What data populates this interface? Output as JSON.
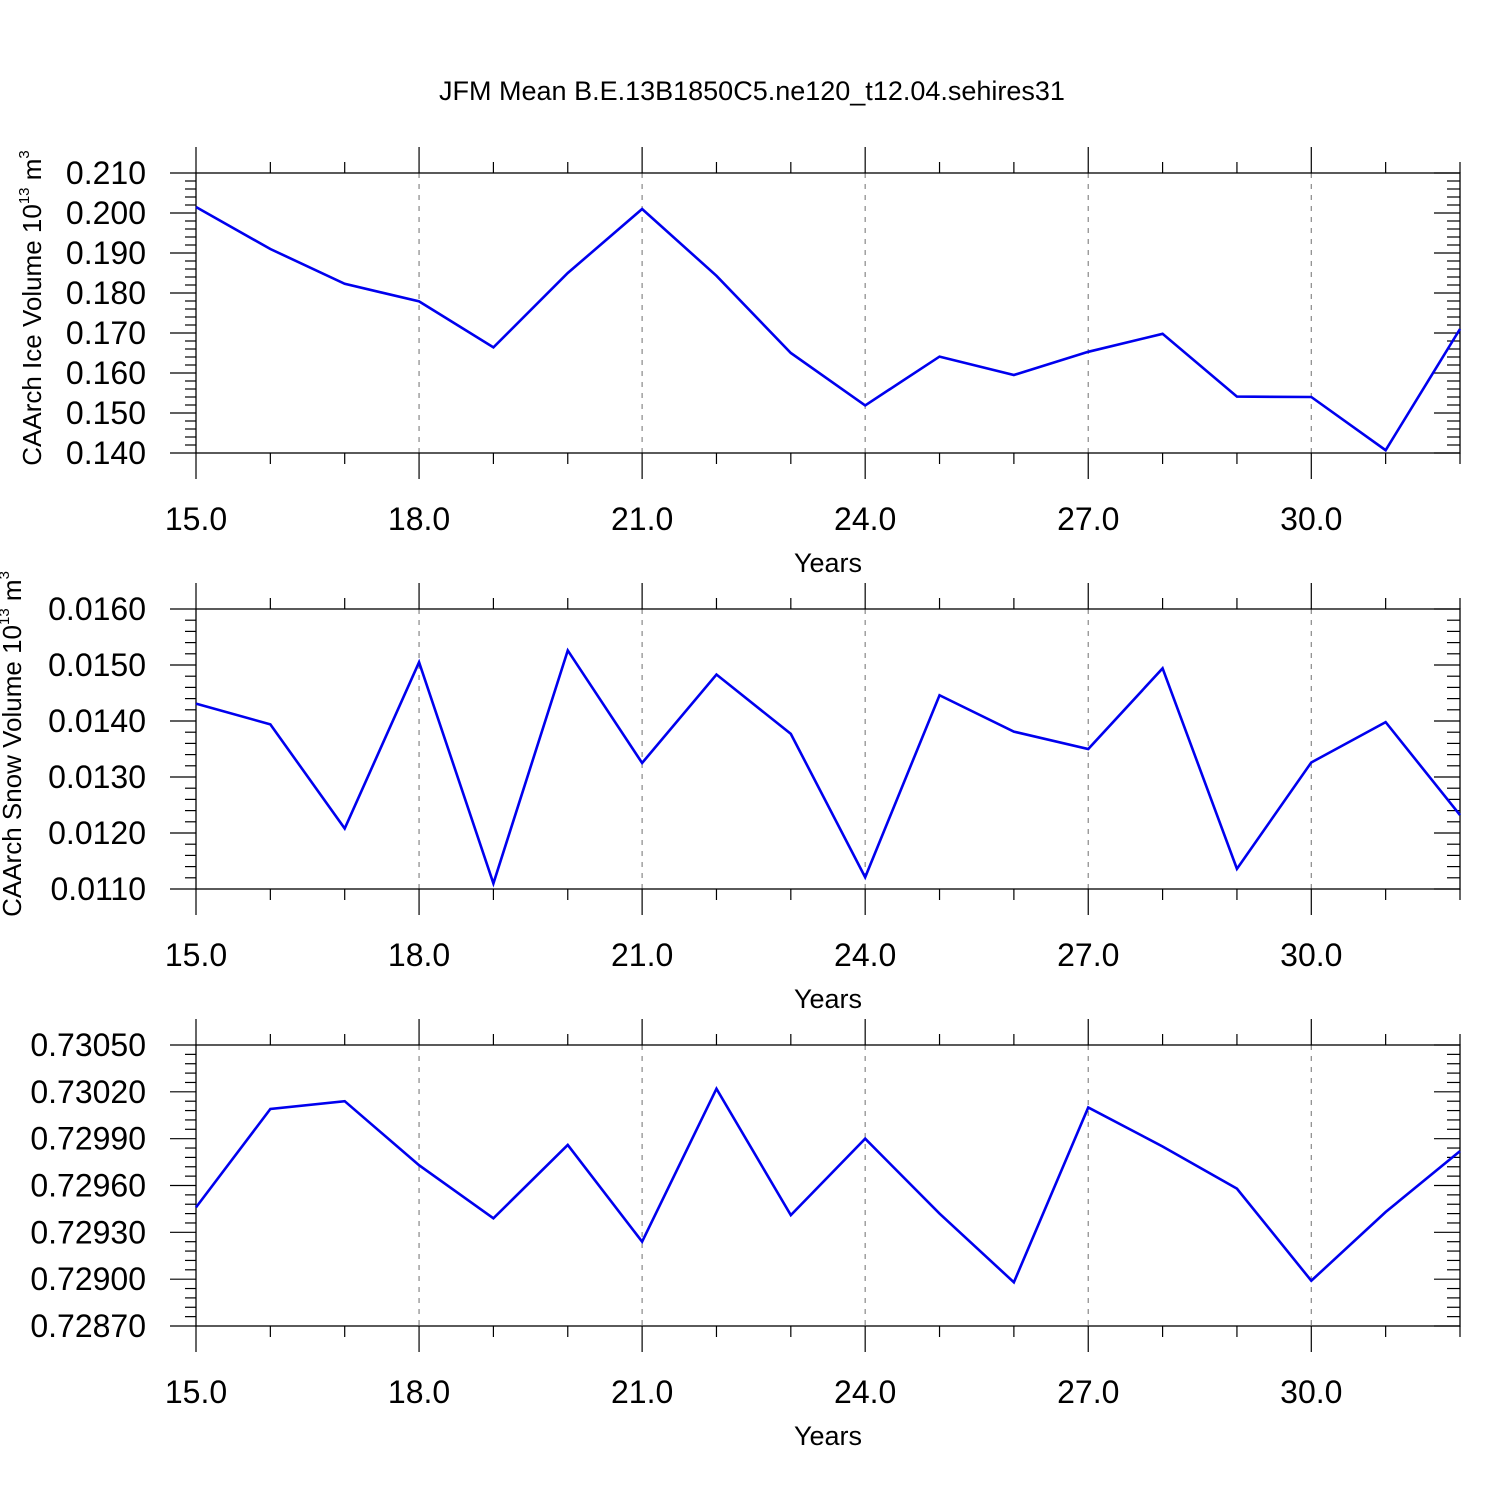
{
  "title": "JFM Mean B.E.13B1850C5.ne120_t12.04.sehires31",
  "colors": {
    "series": "#0000ee",
    "grid": "#888888",
    "axis": "#000000"
  },
  "chart_data": [
    {
      "type": "line",
      "ylabel": "CAArch Ice Volume 10",
      "ylabel_exp": "13",
      "ylabel_unit": " m",
      "ylabel_unit_exp": "3",
      "xlabel": "Years",
      "xlim": [
        15,
        32
      ],
      "ylim": [
        0.14,
        0.21
      ],
      "x_ticks": [
        15,
        18,
        21,
        24,
        27,
        30
      ],
      "x_tick_labels": [
        "15.0",
        "18.0",
        "21.0",
        "24.0",
        "27.0",
        "30.0"
      ],
      "y_ticks": [
        0.14,
        0.15,
        0.16,
        0.17,
        0.18,
        0.19,
        0.2,
        0.21
      ],
      "y_tick_labels": [
        "0.140",
        "0.150",
        "0.160",
        "0.170",
        "0.180",
        "0.190",
        "0.200",
        "0.210"
      ],
      "grid": "vertical dashed",
      "x": [
        15,
        16,
        17,
        18,
        19,
        20,
        21,
        22,
        23,
        24,
        25,
        26,
        27,
        28,
        29,
        30,
        31,
        32
      ],
      "y": [
        0.2015,
        0.191,
        0.1823,
        0.1779,
        0.1664,
        0.185,
        0.201,
        0.1843,
        0.165,
        0.1519,
        0.1641,
        0.1595,
        0.1653,
        0.1698,
        0.1541,
        0.154,
        0.1407,
        0.171
      ]
    },
    {
      "type": "line",
      "ylabel": "CAArch Snow Volume 10",
      "ylabel_exp": "13",
      "ylabel_unit": " m",
      "ylabel_unit_exp": "3",
      "xlabel": "Years",
      "xlim": [
        15,
        32
      ],
      "ylim": [
        0.011,
        0.016
      ],
      "x_ticks": [
        15,
        18,
        21,
        24,
        27,
        30
      ],
      "x_tick_labels": [
        "15.0",
        "18.0",
        "21.0",
        "24.0",
        "27.0",
        "30.0"
      ],
      "y_ticks": [
        0.011,
        0.012,
        0.013,
        0.014,
        0.015,
        0.016
      ],
      "y_tick_labels": [
        "0.0110",
        "0.0120",
        "0.0130",
        "0.0140",
        "0.0150",
        "0.0160"
      ],
      "grid": "vertical dashed",
      "x": [
        15,
        16,
        17,
        18,
        19,
        20,
        21,
        22,
        23,
        24,
        25,
        26,
        27,
        28,
        29,
        30,
        31,
        32
      ],
      "y": [
        0.01431,
        0.01394,
        0.01208,
        0.01505,
        0.0111,
        0.01526,
        0.01325,
        0.01483,
        0.01377,
        0.01121,
        0.01446,
        0.01381,
        0.0135,
        0.01494,
        0.01136,
        0.01326,
        0.01398,
        0.01232
      ]
    },
    {
      "type": "line",
      "ylabel": "",
      "ylabel_exp": "",
      "ylabel_unit": "",
      "ylabel_unit_exp": "",
      "xlabel": "Years",
      "xlim": [
        15,
        32
      ],
      "ylim": [
        0.7287,
        0.7305
      ],
      "x_ticks": [
        15,
        18,
        21,
        24,
        27,
        30
      ],
      "x_tick_labels": [
        "15.0",
        "18.0",
        "21.0",
        "24.0",
        "27.0",
        "30.0"
      ],
      "y_ticks": [
        0.7287,
        0.729,
        0.7293,
        0.7296,
        0.7299,
        0.7302,
        0.7305
      ],
      "y_tick_labels": [
        "0.72870",
        "0.72900",
        "0.72930",
        "0.72960",
        "0.72990",
        "0.73020",
        "0.73050"
      ],
      "grid": "vertical dashed",
      "x": [
        15,
        16,
        17,
        18,
        19,
        20,
        21,
        22,
        23,
        24,
        25,
        26,
        27,
        28,
        29,
        30,
        31,
        32
      ],
      "y": [
        0.72946,
        0.73009,
        0.73014,
        0.72973,
        0.72939,
        0.72986,
        0.72924,
        0.73022,
        0.72941,
        0.7299,
        0.72942,
        0.72898,
        0.7301,
        0.72985,
        0.72958,
        0.72899,
        0.72943,
        0.72982
      ]
    }
  ]
}
